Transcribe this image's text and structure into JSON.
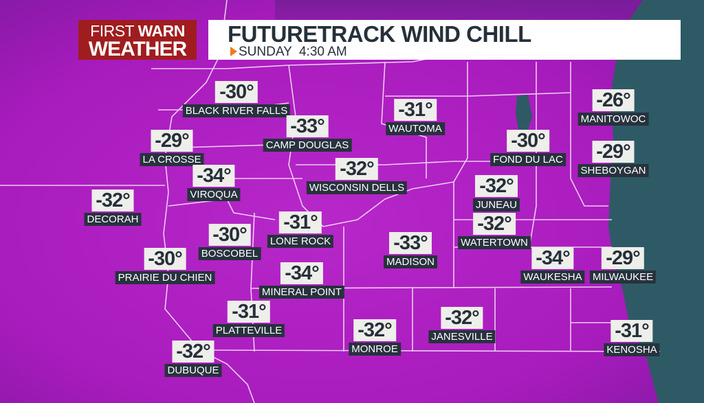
{
  "brand": {
    "line1_a": "FIRST",
    "line1_b": "WARN",
    "line2": "WEATHER",
    "color": "#a01d1f"
  },
  "header": {
    "title": "FUTURETRACK WIND CHILL",
    "time": "SUNDAY  4:30 AM",
    "arrow_color": "#f07a1c"
  },
  "map": {
    "land_color": "#b21fc4",
    "lake_color": "#2e5a66",
    "lake": "Lake Michigan"
  },
  "stations": [
    {
      "name": "BLACK RIVER FALLS",
      "value": "-30°"
    },
    {
      "name": "CAMP DOUGLAS",
      "value": "-33°"
    },
    {
      "name": "LA CROSSE",
      "value": "-29°"
    },
    {
      "name": "VIROQUA",
      "value": "-34°"
    },
    {
      "name": "WISCONSIN DELLS",
      "value": "-32°"
    },
    {
      "name": "DECORAH",
      "value": "-32°"
    },
    {
      "name": "LONE ROCK",
      "value": "-31°"
    },
    {
      "name": "BOSCOBEL",
      "value": "-30°"
    },
    {
      "name": "PRAIRIE DU CHIEN",
      "value": "-30°"
    },
    {
      "name": "MINERAL POINT",
      "value": "-34°"
    },
    {
      "name": "PLATTEVILLE",
      "value": "-31°"
    },
    {
      "name": "DUBUQUE",
      "value": "-32°"
    },
    {
      "name": "MONROE",
      "value": "-32°"
    },
    {
      "name": "JANESVILLE",
      "value": "-32°"
    },
    {
      "name": "MADISON",
      "value": "-33°"
    },
    {
      "name": "WAUTOMA",
      "value": "-31°"
    },
    {
      "name": "FOND DU LAC",
      "value": "-30°"
    },
    {
      "name": "JUNEAU",
      "value": "-32°"
    },
    {
      "name": "WATERTOWN",
      "value": "-32°"
    },
    {
      "name": "WAUKESHA",
      "value": "-34°"
    },
    {
      "name": "MILWAUKEE",
      "value": "-29°"
    },
    {
      "name": "MANITOWOC",
      "value": "-26°"
    },
    {
      "name": "SHEBOYGAN",
      "value": "-29°"
    },
    {
      "name": "KENOSHA",
      "value": "-31°"
    }
  ]
}
